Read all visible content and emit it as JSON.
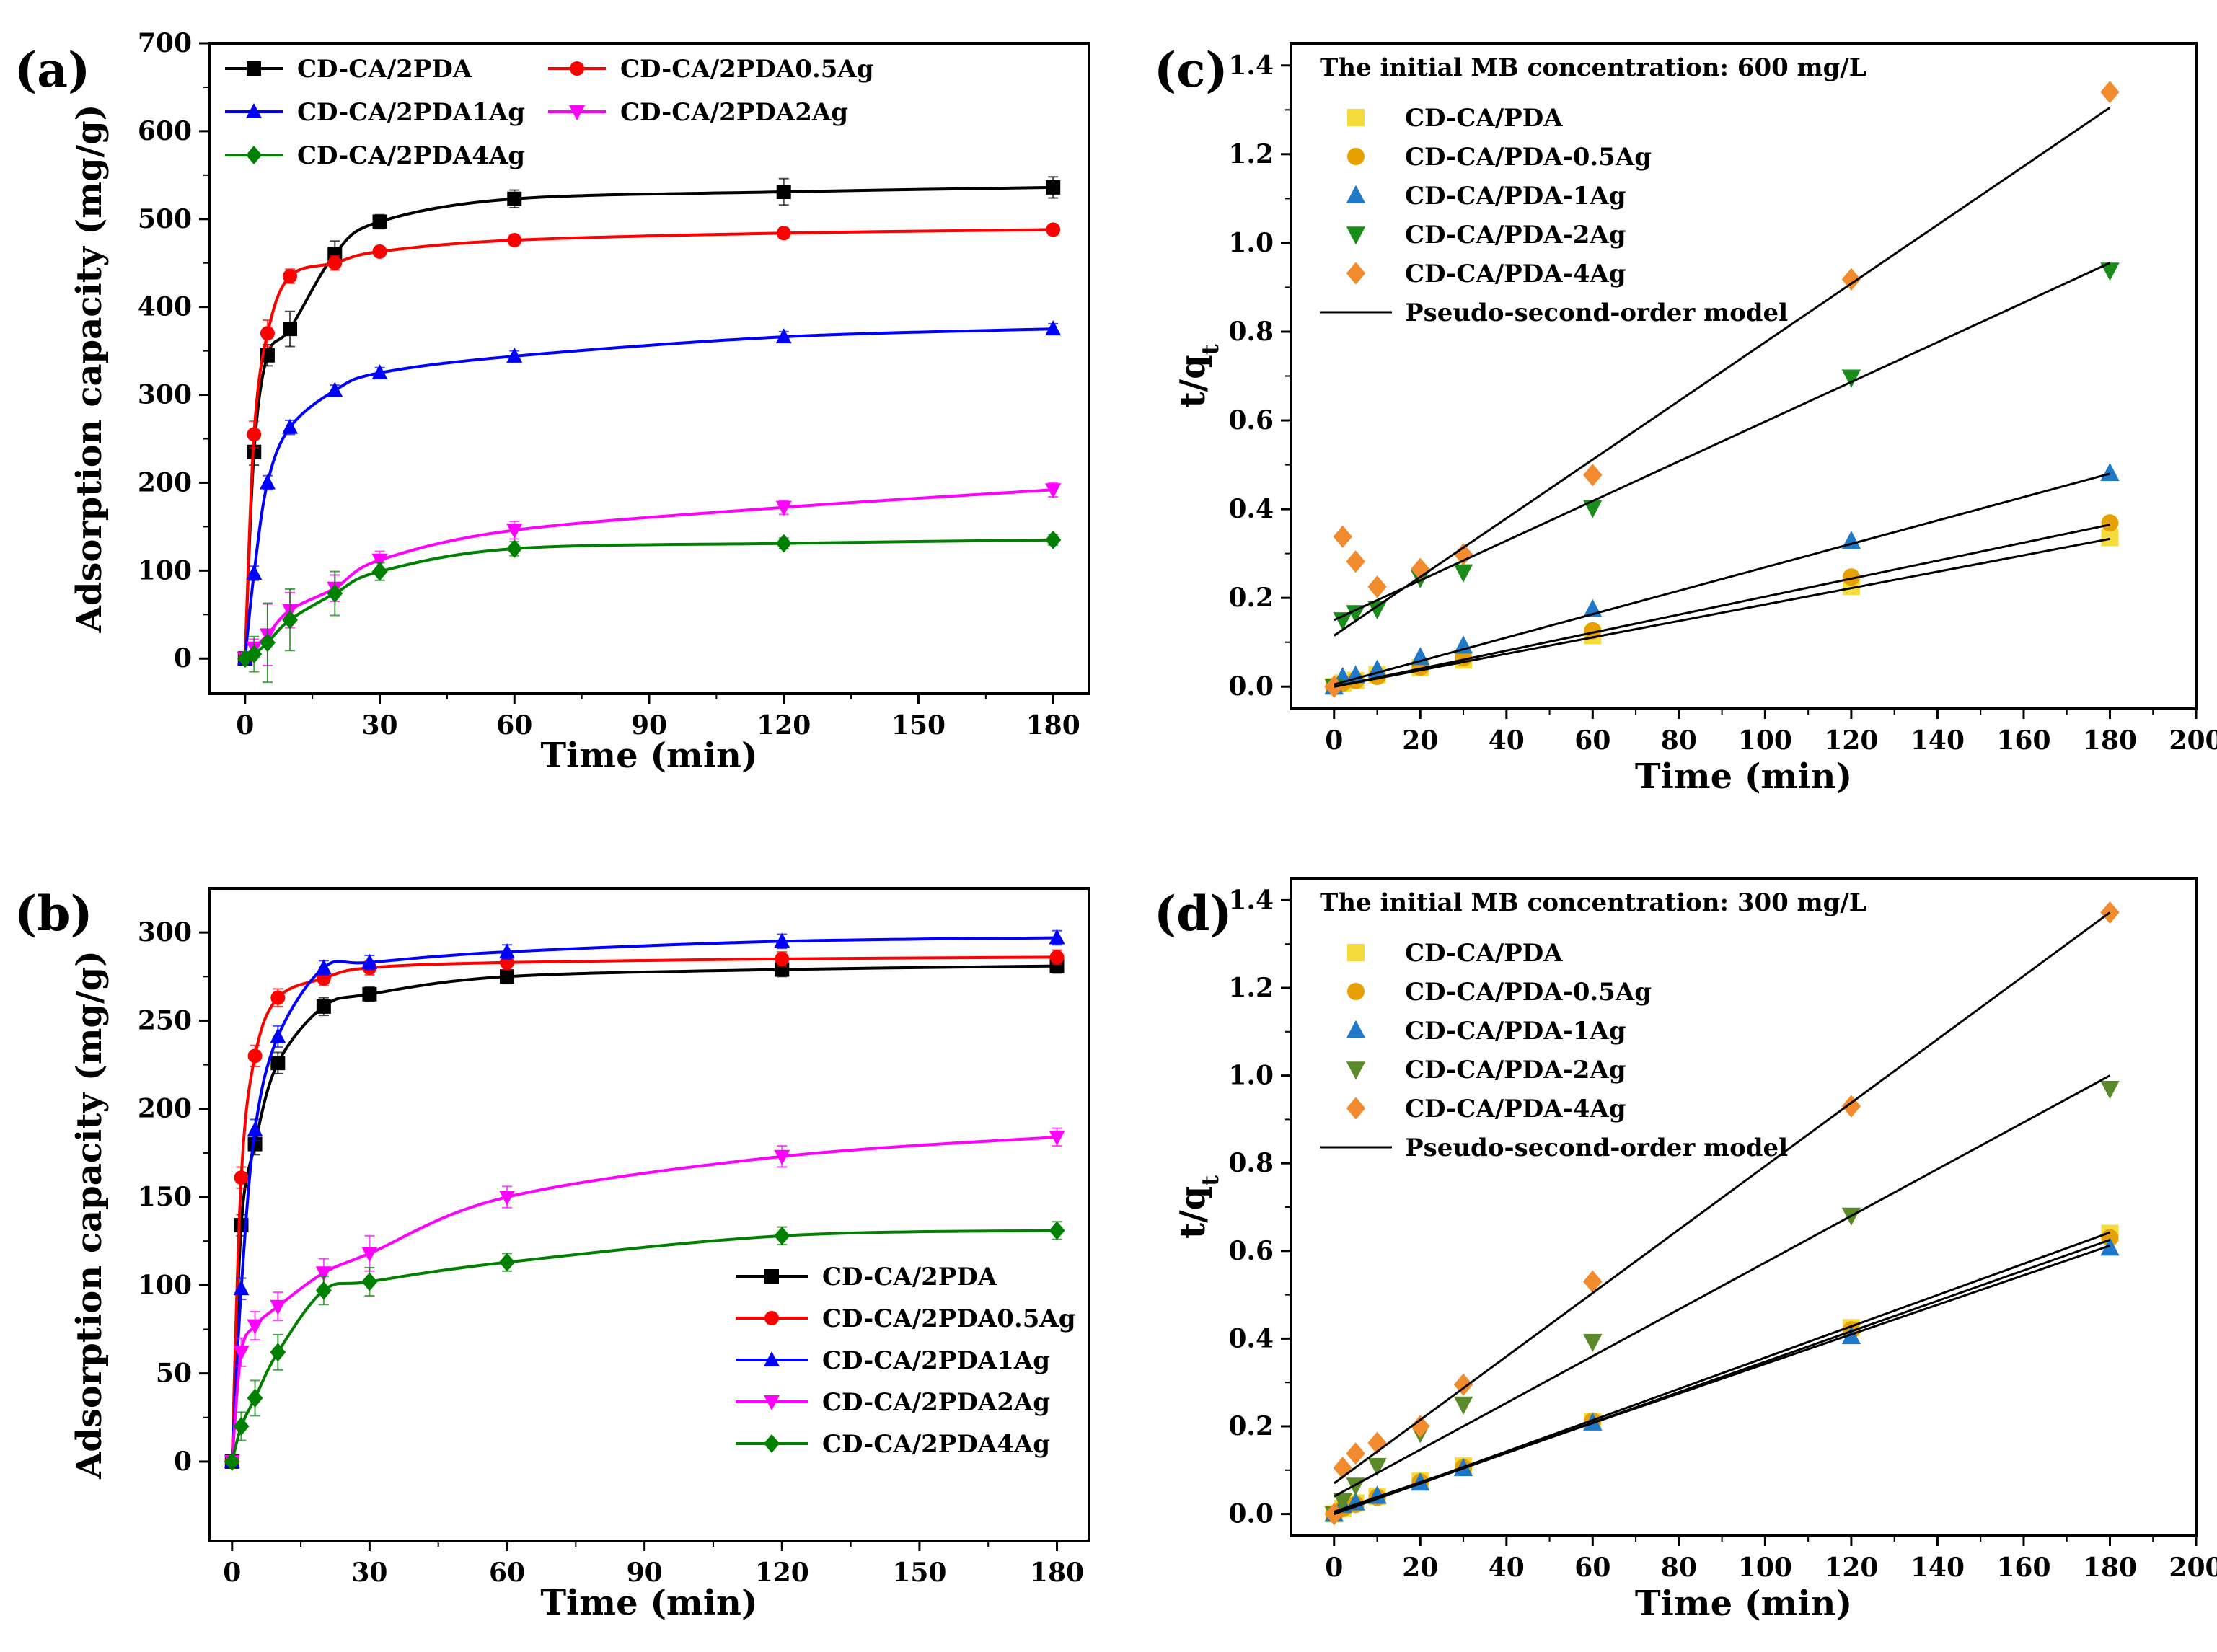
{
  "chart_data": [
    {
      "panel": "(a)",
      "type": "line",
      "xlabel": "Time (min)",
      "ylabel": "Adsorption capacity (mg/g)",
      "xlim": [
        -8,
        188
      ],
      "ylim": [
        -40,
        700
      ],
      "xticks": [
        0,
        30,
        60,
        90,
        120,
        150,
        180
      ],
      "yticks": [
        0,
        100,
        200,
        300,
        400,
        500,
        600,
        700
      ],
      "legend": {
        "position": "top-left",
        "columns": 2
      },
      "series": [
        {
          "name": "CD-CA/2PDA",
          "color": "#000000",
          "marker": "square",
          "x": [
            0,
            2,
            5,
            10,
            20,
            30,
            60,
            120,
            180
          ],
          "y": [
            0,
            235,
            345,
            375,
            460,
            497,
            523,
            531,
            536
          ],
          "err": [
            0,
            15,
            12,
            20,
            15,
            8,
            10,
            15,
            12
          ]
        },
        {
          "name": "CD-CA/2PDA0.5Ag",
          "color": "#ff0000",
          "marker": "circle",
          "x": [
            0,
            2,
            5,
            10,
            20,
            30,
            60,
            120,
            180
          ],
          "y": [
            0,
            255,
            370,
            435,
            450,
            463,
            476,
            484,
            488
          ],
          "err": [
            0,
            15,
            15,
            8,
            8,
            6,
            6,
            6,
            6
          ]
        },
        {
          "name": "CD-CA/2PDA1Ag",
          "color": "#0000ff",
          "marker": "triangle-up",
          "x": [
            0,
            2,
            5,
            10,
            20,
            30,
            60,
            120,
            180
          ],
          "y": [
            0,
            97,
            200,
            263,
            305,
            325,
            344,
            366,
            375
          ],
          "err": [
            0,
            8,
            8,
            8,
            6,
            6,
            6,
            6,
            6
          ]
        },
        {
          "name": "CD-CA/2PDA2Ag",
          "color": "#ff00ff",
          "marker": "triangle-down",
          "x": [
            0,
            2,
            5,
            10,
            20,
            30,
            60,
            120,
            180
          ],
          "y": [
            0,
            12,
            27,
            55,
            80,
            112,
            146,
            172,
            192
          ],
          "err": [
            0,
            10,
            35,
            20,
            15,
            10,
            10,
            8,
            8
          ]
        },
        {
          "name": "CD-CA/2PDA4Ag",
          "color": "#008000",
          "marker": "diamond",
          "x": [
            0,
            2,
            5,
            10,
            20,
            30,
            60,
            120,
            180
          ],
          "y": [
            0,
            5,
            18,
            44,
            74,
            99,
            125,
            131,
            135
          ],
          "err": [
            0,
            20,
            45,
            35,
            25,
            10,
            8,
            6,
            6
          ]
        }
      ]
    },
    {
      "panel": "(b)",
      "type": "line",
      "xlabel": "Time (min)",
      "ylabel": "Adsorption capacity (mg/g)",
      "xlim": [
        -5,
        187
      ],
      "ylim": [
        -45,
        325
      ],
      "xticks": [
        0,
        30,
        60,
        90,
        120,
        150,
        180
      ],
      "yticks": [
        0,
        50,
        100,
        150,
        200,
        250,
        300
      ],
      "legend": {
        "position": "bottom-right",
        "columns": 1
      },
      "series": [
        {
          "name": "CD-CA/2PDA",
          "color": "#000000",
          "marker": "square",
          "x": [
            0,
            2,
            5,
            10,
            20,
            30,
            60,
            120,
            180
          ],
          "y": [
            0,
            134,
            180,
            226,
            258,
            265,
            275,
            279,
            281
          ],
          "err": [
            0,
            6,
            6,
            6,
            5,
            4,
            4,
            4,
            4
          ]
        },
        {
          "name": "CD-CA/2PDA0.5Ag",
          "color": "#ff0000",
          "marker": "circle",
          "x": [
            0,
            2,
            5,
            10,
            20,
            30,
            60,
            120,
            180
          ],
          "y": [
            0,
            161,
            230,
            263,
            274,
            280,
            283,
            285,
            286
          ],
          "err": [
            0,
            6,
            6,
            5,
            4,
            4,
            4,
            4,
            4
          ]
        },
        {
          "name": "CD-CA/2PDA1Ag",
          "color": "#0000ff",
          "marker": "triangle-up",
          "x": [
            0,
            2,
            5,
            10,
            20,
            30,
            60,
            120,
            180
          ],
          "y": [
            0,
            98,
            188,
            241,
            280,
            283,
            289,
            295,
            297
          ],
          "err": [
            0,
            6,
            6,
            6,
            4,
            4,
            4,
            4,
            4
          ]
        },
        {
          "name": "CD-CA/2PDA2Ag",
          "color": "#ff00ff",
          "marker": "triangle-down",
          "x": [
            0,
            2,
            5,
            10,
            20,
            30,
            60,
            120,
            180
          ],
          "y": [
            0,
            62,
            77,
            88,
            107,
            118,
            150,
            173,
            184
          ],
          "err": [
            0,
            8,
            8,
            8,
            8,
            10,
            6,
            6,
            5
          ]
        },
        {
          "name": "CD-CA/2PDA4Ag",
          "color": "#008000",
          "marker": "diamond",
          "x": [
            0,
            2,
            5,
            10,
            20,
            30,
            60,
            120,
            180
          ],
          "y": [
            0,
            20,
            36,
            62,
            97,
            102,
            113,
            128,
            131
          ],
          "err": [
            0,
            8,
            10,
            10,
            8,
            8,
            5,
            5,
            5
          ]
        }
      ]
    },
    {
      "panel": "(c)",
      "type": "scatter",
      "title": "The initial MB concentration: 600 mg/L",
      "xlabel": "Time (min)",
      "ylabel": "t/q",
      "ylabel_sub": "t",
      "xlim": [
        -10,
        200
      ],
      "ylim": [
        -0.05,
        1.45
      ],
      "xticks": [
        0,
        20,
        40,
        60,
        80,
        100,
        120,
        140,
        160,
        180,
        200
      ],
      "yticks": [
        0.0,
        0.2,
        0.4,
        0.6,
        0.8,
        1.0,
        1.2,
        1.4
      ],
      "legend": {
        "position": "top-left",
        "columns": 1
      },
      "series": [
        {
          "name": "CD-CA/PDA",
          "color": "#f5dc3c",
          "marker": "square",
          "x": [
            0,
            2,
            5,
            10,
            20,
            30,
            60,
            120,
            180
          ],
          "y": [
            0.0,
            0.008,
            0.014,
            0.027,
            0.043,
            0.06,
            0.115,
            0.226,
            0.336
          ]
        },
        {
          "name": "CD-CA/PDA-0.5Ag",
          "color": "#e6a000",
          "marker": "circle",
          "x": [
            0,
            2,
            5,
            10,
            20,
            30,
            60,
            120,
            180
          ],
          "y": [
            0.0,
            0.008,
            0.014,
            0.023,
            0.044,
            0.065,
            0.126,
            0.247,
            0.369
          ]
        },
        {
          "name": "CD-CA/PDA-1Ag",
          "color": "#1f78c8",
          "marker": "triangle-up",
          "x": [
            0,
            2,
            5,
            10,
            20,
            30,
            60,
            120,
            180
          ],
          "y": [
            0.0,
            0.021,
            0.025,
            0.038,
            0.066,
            0.092,
            0.174,
            0.328,
            0.481
          ]
        },
        {
          "name": "CD-CA/PDA-2Ag",
          "color": "#1a8c1a",
          "marker": "triangle-down",
          "x": [
            0,
            2,
            5,
            10,
            20,
            30,
            60,
            120,
            180
          ],
          "y": [
            0.0,
            0.15,
            0.166,
            0.175,
            0.245,
            0.258,
            0.403,
            0.697,
            0.938
          ]
        },
        {
          "name": "CD-CA/PDA-4Ag",
          "color": "#f28a2e",
          "marker": "diamond",
          "x": [
            0,
            2,
            5,
            10,
            20,
            30,
            60,
            120,
            180
          ],
          "y": [
            0.0,
            0.338,
            0.282,
            0.225,
            0.265,
            0.298,
            0.477,
            0.918,
            1.34
          ]
        },
        {
          "name": "Pseudo-second-order model",
          "color": "#000000",
          "marker": "line",
          "fits": [
            {
              "x": [
                0,
                180
              ],
              "y": [
                0.0,
                0.333
              ]
            },
            {
              "x": [
                0,
                180
              ],
              "y": [
                0.0,
                0.365
              ]
            },
            {
              "x": [
                0,
                180
              ],
              "y": [
                0.005,
                0.48
              ]
            },
            {
              "x": [
                0,
                180
              ],
              "y": [
                0.15,
                0.955
              ]
            },
            {
              "x": [
                0,
                180
              ],
              "y": [
                0.115,
                1.305
              ]
            }
          ]
        }
      ]
    },
    {
      "panel": "(d)",
      "type": "scatter",
      "title": "The initial MB concentration: 300 mg/L",
      "xlabel": "Time (min)",
      "ylabel": "t/q",
      "ylabel_sub": "t",
      "xlim": [
        -10,
        200
      ],
      "ylim": [
        -0.05,
        1.45
      ],
      "xticks": [
        0,
        20,
        40,
        60,
        80,
        100,
        120,
        140,
        160,
        180,
        200
      ],
      "yticks": [
        0.0,
        0.2,
        0.4,
        0.6,
        0.8,
        1.0,
        1.2,
        1.4
      ],
      "legend": {
        "position": "top-left",
        "columns": 1
      },
      "series": [
        {
          "name": "CD-CA/PDA",
          "color": "#f5dc3c",
          "marker": "square",
          "x": [
            0,
            2,
            5,
            10,
            20,
            30,
            60,
            120,
            180
          ],
          "y": [
            0.0,
            0.012,
            0.025,
            0.04,
            0.075,
            0.11,
            0.21,
            0.425,
            0.64
          ]
        },
        {
          "name": "CD-CA/PDA-0.5Ag",
          "color": "#e6a000",
          "marker": "circle",
          "x": [
            0,
            2,
            5,
            10,
            20,
            30,
            60,
            120,
            180
          ],
          "y": [
            0.0,
            0.012,
            0.022,
            0.038,
            0.073,
            0.106,
            0.212,
            0.42,
            0.63
          ]
        },
        {
          "name": "CD-CA/PDA-1Ag",
          "color": "#1f78c8",
          "marker": "triangle-up",
          "x": [
            0,
            2,
            5,
            10,
            20,
            30,
            60,
            120,
            180
          ],
          "y": [
            0.0,
            0.02,
            0.026,
            0.041,
            0.071,
            0.104,
            0.208,
            0.405,
            0.607
          ]
        },
        {
          "name": "CD-CA/PDA-2Ag",
          "color": "#5b8a2a",
          "marker": "triangle-down",
          "x": [
            0,
            2,
            5,
            10,
            20,
            30,
            60,
            120,
            180
          ],
          "y": [
            0.0,
            0.03,
            0.065,
            0.11,
            0.185,
            0.25,
            0.393,
            0.681,
            0.97
          ]
        },
        {
          "name": "CD-CA/PDA-4Ag",
          "color": "#f28a2e",
          "marker": "diamond",
          "x": [
            0,
            2,
            5,
            10,
            20,
            30,
            60,
            120,
            180
          ],
          "y": [
            0.0,
            0.105,
            0.138,
            0.162,
            0.2,
            0.295,
            0.53,
            0.93,
            1.372
          ]
        },
        {
          "name": "Pseudo-second-order model",
          "color": "#000000",
          "marker": "line",
          "fits": [
            {
              "x": [
                0,
                180
              ],
              "y": [
                0.0,
                0.642
              ]
            },
            {
              "x": [
                0,
                180
              ],
              "y": [
                0.0,
                0.625
              ]
            },
            {
              "x": [
                0,
                180
              ],
              "y": [
                0.005,
                0.612
              ]
            },
            {
              "x": [
                0,
                180
              ],
              "y": [
                0.04,
                1.0
              ]
            },
            {
              "x": [
                0,
                180
              ],
              "y": [
                0.07,
                1.372
              ]
            }
          ]
        }
      ]
    }
  ]
}
